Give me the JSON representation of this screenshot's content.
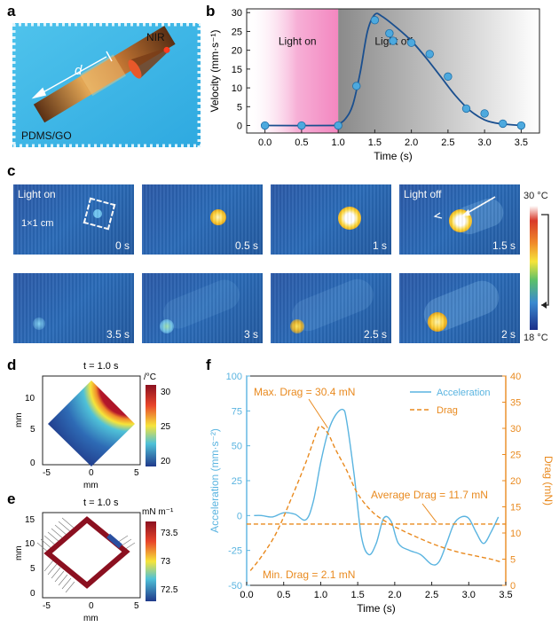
{
  "panels": {
    "a": {
      "letter": "a",
      "label_nir": "NIR",
      "label_d": "d",
      "label_material": "PDMS/GO"
    },
    "b": {
      "letter": "b"
    },
    "c": {
      "letter": "c",
      "light_on": "Light on",
      "light_off": "Light off",
      "scale_label": "1×1 cm",
      "colorbar_top": "30 °C",
      "colorbar_bottom": "18 °C",
      "frames": [
        {
          "time": "0 s"
        },
        {
          "time": "0.5 s"
        },
        {
          "time": "1 s"
        },
        {
          "time": "1.5 s"
        },
        {
          "time": "3.5 s"
        },
        {
          "time": "3 s"
        },
        {
          "time": "2.5 s"
        },
        {
          "time": "2 s"
        }
      ]
    },
    "d": {
      "letter": "d",
      "title": "t = 1.0 s",
      "unit": "/°C",
      "xlabel": "mm",
      "ylabel": "mm",
      "colorbar_ticks": [
        "30",
        "25",
        "20"
      ],
      "x_ticks": [
        "-5",
        "0",
        "5"
      ],
      "y_ticks": [
        "10",
        "5",
        "0"
      ]
    },
    "e": {
      "letter": "e",
      "title": "t = 1.0 s",
      "unit": "mN m⁻¹",
      "xlabel": "mm",
      "ylabel": "mm",
      "colorbar_ticks": [
        "73.5",
        "73",
        "72.5"
      ],
      "x_ticks": [
        "-5",
        "0",
        "5"
      ],
      "y_ticks": [
        "15",
        "10",
        "5",
        "0"
      ]
    },
    "f": {
      "letter": "f"
    }
  },
  "chart_data": [
    {
      "id": "b",
      "type": "scatter",
      "xlabel": "Time (s)",
      "ylabel": "Velocity (mm·s⁻¹)",
      "xlim": [
        -0.25,
        3.75
      ],
      "ylim": [
        -2,
        31
      ],
      "x_ticks": [
        0.0,
        0.5,
        1.0,
        1.5,
        2.0,
        2.5,
        3.0,
        3.5
      ],
      "y_ticks": [
        0,
        5,
        10,
        15,
        20,
        25,
        30
      ],
      "regions": [
        {
          "label": "Light on",
          "x_range": [
            0.0,
            1.0
          ],
          "color": "#f06fb5"
        },
        {
          "label": "Light off",
          "x_range": [
            1.0,
            3.75
          ],
          "color": "#8a8a8a"
        }
      ],
      "points": {
        "x": [
          0.0,
          0.5,
          1.0,
          1.25,
          1.5,
          1.7,
          1.75,
          2.0,
          2.25,
          2.5,
          2.75,
          3.0,
          3.25,
          3.5
        ],
        "y": [
          0,
          0,
          0,
          10.5,
          28,
          24.5,
          22.5,
          22,
          19,
          13,
          4.5,
          3.2,
          0.5,
          0
        ]
      },
      "fit": {
        "x": [
          0.0,
          0.9,
          1.0,
          1.1,
          1.2,
          1.3,
          1.4,
          1.5,
          1.6,
          1.8,
          2.0,
          2.2,
          2.4,
          2.6,
          2.8,
          3.0,
          3.2,
          3.5
        ],
        "y": [
          0,
          0,
          0.3,
          1.8,
          5.5,
          14,
          25,
          29.5,
          29,
          26,
          22.5,
          18,
          13,
          8,
          4,
          1.5,
          0.5,
          0
        ]
      },
      "colors": {
        "points": "#4da9de",
        "fit": "#1a4f8f"
      }
    },
    {
      "id": "f",
      "type": "line",
      "xlabel": "Time (s)",
      "ylabel_left": "Acceleration (mm·s⁻²)",
      "ylabel_right": "Drag (mN)",
      "xlim": [
        0,
        3.5
      ],
      "ylim_left": [
        -50,
        100
      ],
      "ylim_right": [
        0,
        40
      ],
      "x_ticks": [
        0.0,
        0.5,
        1.0,
        1.5,
        2.0,
        2.5,
        3.0,
        3.5
      ],
      "y_ticks_left": [
        -50,
        -25,
        0,
        25,
        50,
        75,
        100
      ],
      "y_ticks_right": [
        0,
        5,
        10,
        15,
        20,
        25,
        30,
        35,
        40
      ],
      "legend": {
        "placement": "top-right"
      },
      "series": [
        {
          "name": "Acceleration",
          "axis": "left",
          "style": "solid",
          "color": "#5ab4e0",
          "x": [
            0.1,
            0.2,
            0.35,
            0.5,
            0.65,
            0.8,
            0.9,
            1.0,
            1.1,
            1.2,
            1.3,
            1.35,
            1.45,
            1.55,
            1.65,
            1.75,
            1.85,
            1.95,
            2.05,
            2.2,
            2.35,
            2.5,
            2.6,
            2.7,
            2.8,
            2.9,
            3.0,
            3.1,
            3.2,
            3.3,
            3.4
          ],
          "y": [
            0,
            0,
            -1,
            2,
            1,
            -3,
            10,
            38,
            60,
            72,
            76,
            68,
            30,
            -15,
            -28,
            -20,
            -2,
            -4,
            -20,
            -25,
            -28,
            -35,
            -33,
            -20,
            -6,
            -1,
            -2,
            -12,
            -20,
            -12,
            -1
          ]
        },
        {
          "name": "Drag",
          "axis": "right",
          "style": "dashed",
          "color": "#e98a1f",
          "x": [
            0.05,
            0.2,
            0.4,
            0.6,
            0.8,
            0.95,
            1.0,
            1.1,
            1.2,
            1.35,
            1.5,
            1.7,
            1.9,
            2.1,
            2.3,
            2.5,
            2.7,
            2.9,
            3.1,
            3.3,
            3.45
          ],
          "y": [
            2.8,
            5.5,
            10,
            16.5,
            23.5,
            29.5,
            30.4,
            29,
            26,
            22,
            17.5,
            14,
            12,
            10.5,
            9.2,
            8,
            7,
            6.2,
            5.6,
            5,
            4.4
          ]
        },
        {
          "name": "Average Drag",
          "axis": "right",
          "style": "dashed",
          "color": "#e98a1f",
          "x": [
            0,
            3.5
          ],
          "y": [
            11.7,
            11.7
          ]
        }
      ],
      "annotations": {
        "max": "Max. Drag = 30.4 mN",
        "avg": "Average Drag = 11.7 mN",
        "min": "Min. Drag = 2.1 mN"
      }
    }
  ]
}
